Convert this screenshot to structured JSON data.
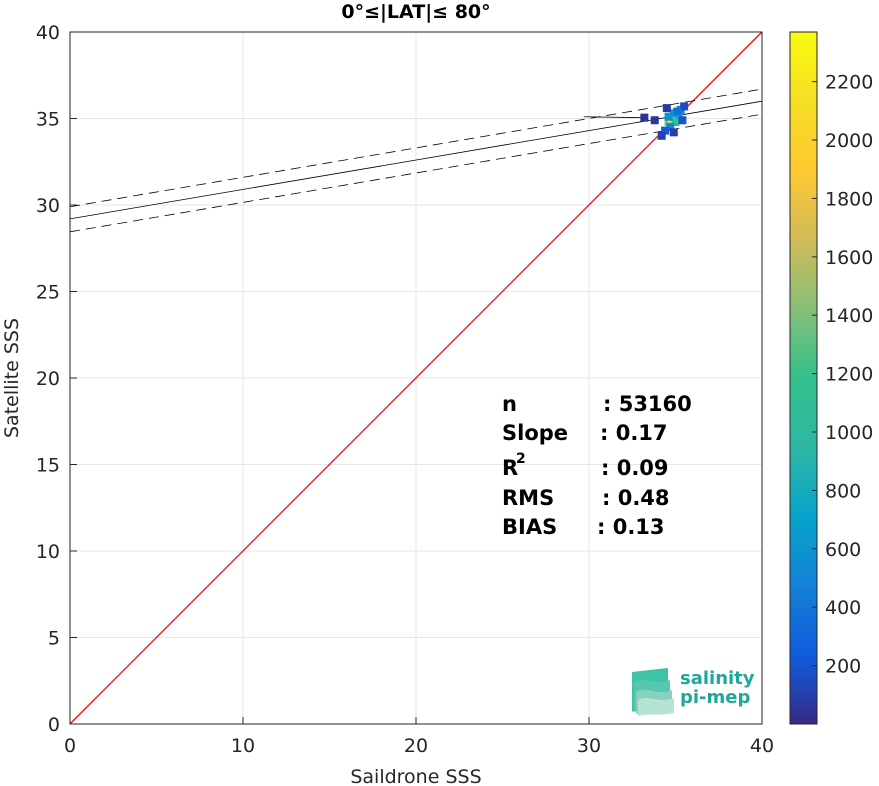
{
  "chart_data": {
    "type": "scatter",
    "title": "0°≤|LAT|≤ 80°",
    "xlabel": "Saildrone SSS",
    "ylabel": "Satellite SSS",
    "xlim": [
      0,
      40
    ],
    "ylim": [
      0,
      40
    ],
    "xticks": [
      "0",
      "10",
      "20",
      "30",
      "40"
    ],
    "yticks": [
      "0",
      "5",
      "10",
      "15",
      "20",
      "25",
      "30",
      "35",
      "40"
    ],
    "grid": true,
    "colorbar": {
      "range": [
        0,
        2370
      ],
      "ticks": [
        "200",
        "400",
        "600",
        "800",
        "1000",
        "1200",
        "1400",
        "1600",
        "1800",
        "2000",
        "2200"
      ],
      "colormap": "parula"
    },
    "identity_line": {
      "x": [
        0,
        40
      ],
      "y": [
        0,
        40
      ],
      "color": "#ff0000"
    },
    "regression_line": {
      "slope": 0.17,
      "intercept": 29.2,
      "color": "#000000"
    },
    "confidence_bounds": [
      {
        "intercept": 29.9,
        "slope": 0.17
      },
      {
        "intercept": 28.45,
        "slope": 0.17
      }
    ],
    "density_points": [
      {
        "x": 34.6,
        "y": 34.8,
        "count": 1400
      },
      {
        "x": 34.8,
        "y": 35.0,
        "count": 2300
      },
      {
        "x": 35.0,
        "y": 35.1,
        "count": 1800
      },
      {
        "x": 35.2,
        "y": 35.2,
        "count": 900
      },
      {
        "x": 35.0,
        "y": 34.8,
        "count": 1100
      },
      {
        "x": 34.9,
        "y": 35.3,
        "count": 700
      },
      {
        "x": 35.3,
        "y": 35.5,
        "count": 450
      },
      {
        "x": 34.7,
        "y": 34.5,
        "count": 500
      },
      {
        "x": 34.4,
        "y": 34.3,
        "count": 250
      },
      {
        "x": 34.2,
        "y": 34.0,
        "count": 120
      },
      {
        "x": 35.5,
        "y": 35.7,
        "count": 150
      },
      {
        "x": 34.5,
        "y": 35.6,
        "count": 80
      },
      {
        "x": 35.4,
        "y": 34.9,
        "count": 200
      },
      {
        "x": 33.8,
        "y": 34.9,
        "count": 60
      },
      {
        "x": 33.2,
        "y": 35.05,
        "count": 40
      },
      {
        "x": 34.9,
        "y": 34.2,
        "count": 90
      },
      {
        "x": 34.6,
        "y": 35.1,
        "count": 600
      },
      {
        "x": 35.1,
        "y": 35.4,
        "count": 350
      }
    ],
    "stats": [
      {
        "label": "n",
        "value": ": 53160"
      },
      {
        "label": "Slope",
        "value": ": 0.17"
      },
      {
        "label": "R",
        "sup": "2",
        "value": ": 0.09"
      },
      {
        "label": "RMS",
        "value": ": 0.48"
      },
      {
        "label": "BIAS",
        "value": ": 0.13"
      }
    ]
  },
  "logo": {
    "line1": "salinity",
    "line2": "pi-mep",
    "color": "#1fa89a"
  }
}
